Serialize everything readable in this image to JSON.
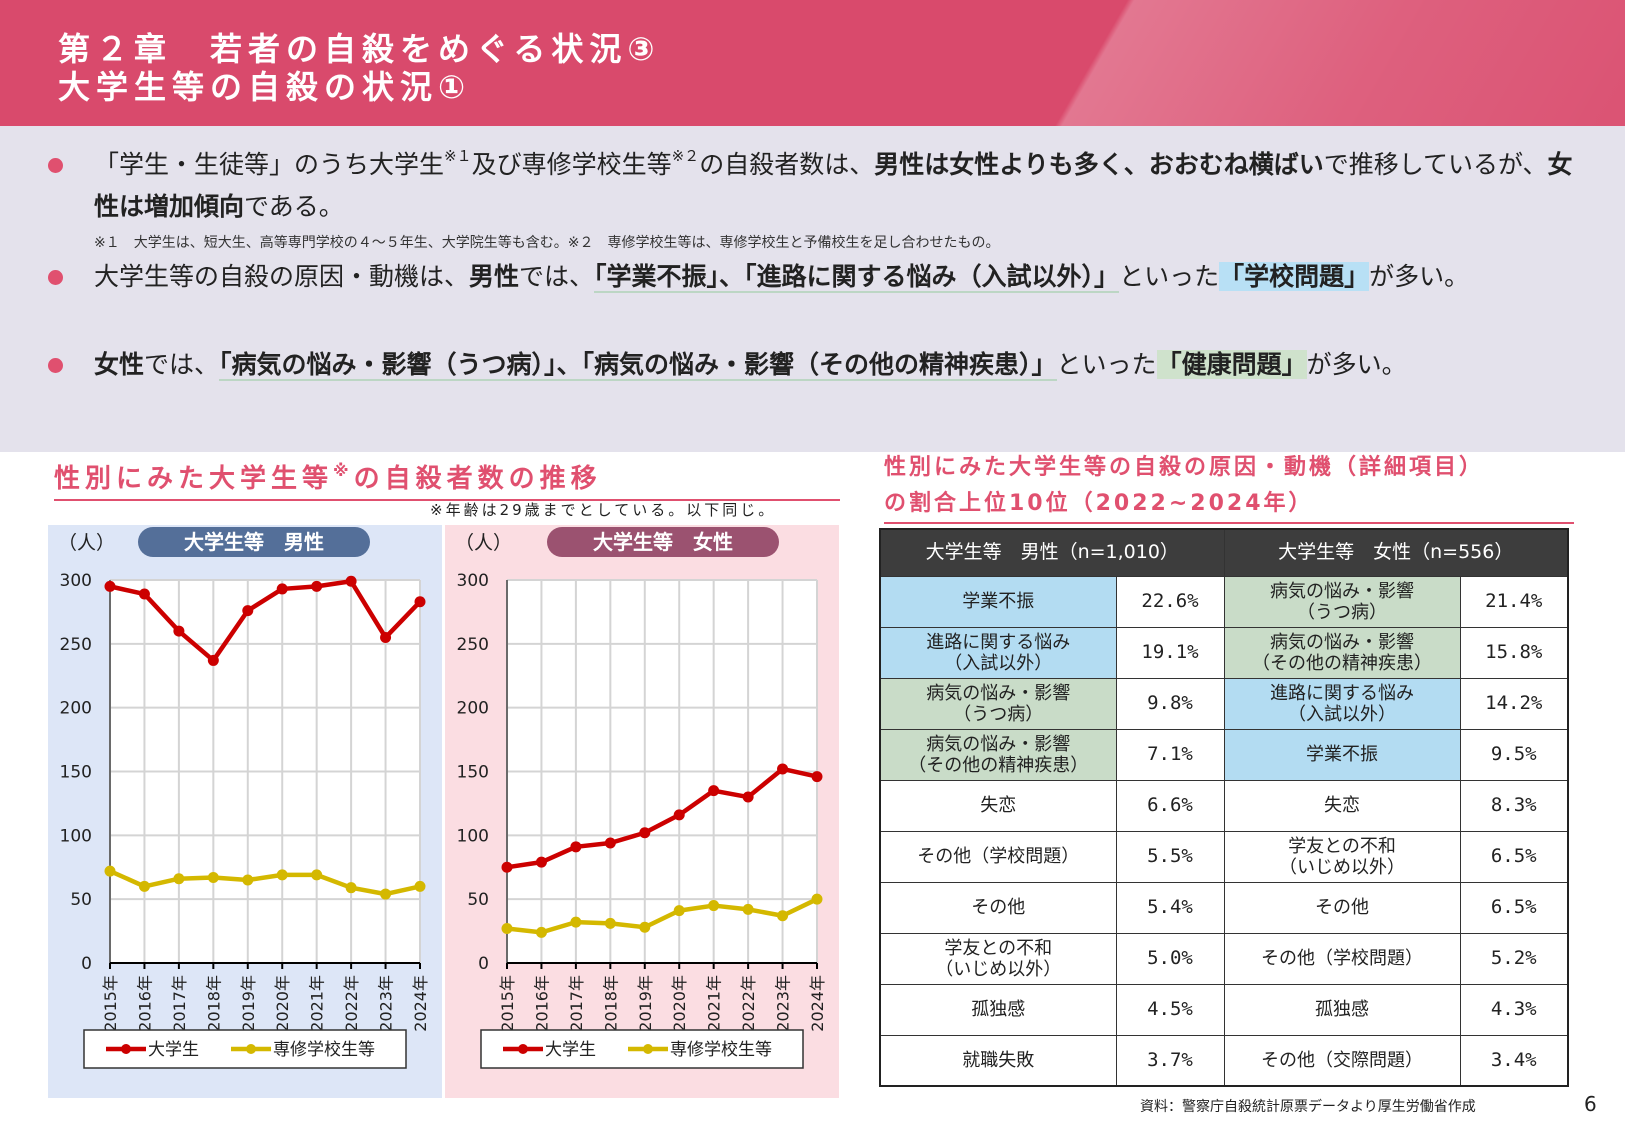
{
  "header": {
    "line1": "第２章　若者の自殺をめぐる状況③",
    "line2": "大学生等の自殺の状況①"
  },
  "bullets": [
    {
      "segments": [
        {
          "text": "「学生・生徒等」のうち大学生"
        },
        {
          "text": "※１",
          "sup": true
        },
        {
          "text": "及び専修学校生等"
        },
        {
          "text": "※２",
          "sup": true
        },
        {
          "text": "の自殺者数は、"
        },
        {
          "text": "男性は女性よりも多く、おおむね横ばい",
          "bold": true
        },
        {
          "text": "で推移しているが、"
        },
        {
          "text": "女性は増加傾向",
          "bold": true
        },
        {
          "text": "である。"
        }
      ]
    },
    {
      "segments": [
        {
          "text": "大学生等の自殺の原因・動機は、"
        },
        {
          "text": "男性",
          "bold": true
        },
        {
          "text": "では、"
        },
        {
          "text": "「学業不振」、「進路に関する悩み（入試以外）」",
          "bold": true,
          "ul": true
        },
        {
          "text": "といった"
        },
        {
          "text": "「学校問題」",
          "bold": true,
          "hl": "blue"
        },
        {
          "text": "が多い。"
        }
      ]
    },
    {
      "segments": [
        {
          "text": "女性",
          "bold": true
        },
        {
          "text": "では、"
        },
        {
          "text": "「病気の悩み・影響（うつ病）」、「病気の悩み・影響（その他の精神疾患）」",
          "bold": true,
          "ul": true
        },
        {
          "text": "といった"
        },
        {
          "text": "「健康問題」",
          "bold": true,
          "hl": "green"
        },
        {
          "text": "が多い。"
        }
      ]
    }
  ],
  "note": "※１　大学生は、短大生、高等専門学校の４～５年生、大学院生等も含む。※２　専修学校生等は、専修学校生と予備校生を足し合わせたもの。",
  "left_section": {
    "title": "性別にみた大学生等",
    "title_sup": "※",
    "title_rest": "の自殺者数の推移",
    "note": "※年齢は29歳までとしている。以下同じ。"
  },
  "right_section": {
    "title_line1": "性別にみた大学生等の自殺の原因・動機（詳細項目）",
    "title_line2": "の割合上位10位（2022~2024年）"
  },
  "chart_data": [
    {
      "type": "line",
      "title": "大学生等　男性",
      "ylabel": "（人）",
      "ylim": [
        0,
        300
      ],
      "yticks": [
        0,
        50,
        100,
        150,
        200,
        250,
        300
      ],
      "grid": true,
      "legend": "bottom",
      "categories": [
        "2015年",
        "2016年",
        "2017年",
        "2018年",
        "2019年",
        "2020年",
        "2021年",
        "2022年",
        "2023年",
        "2024年"
      ],
      "series": [
        {
          "name": "大学生",
          "color": "#cc0000",
          "values": [
            295,
            289,
            260,
            237,
            276,
            293,
            295,
            299,
            255,
            283
          ]
        },
        {
          "name": "専修学校生等",
          "color": "#d4b800",
          "values": [
            72,
            60,
            66,
            67,
            65,
            69,
            69,
            59,
            54,
            60
          ]
        }
      ]
    },
    {
      "type": "line",
      "title": "大学生等　女性",
      "ylabel": "（人）",
      "ylim": [
        0,
        300
      ],
      "yticks": [
        0,
        50,
        100,
        150,
        200,
        250,
        300
      ],
      "grid": true,
      "legend": "bottom",
      "categories": [
        "2015年",
        "2016年",
        "2017年",
        "2018年",
        "2019年",
        "2020年",
        "2021年",
        "2022年",
        "2023年",
        "2024年"
      ],
      "series": [
        {
          "name": "大学生",
          "color": "#cc0000",
          "values": [
            75,
            79,
            91,
            94,
            102,
            116,
            135,
            130,
            152,
            146
          ]
        },
        {
          "name": "専修学校生等",
          "color": "#d4b800",
          "values": [
            27,
            24,
            32,
            31,
            28,
            41,
            45,
            42,
            37,
            50
          ]
        }
      ]
    }
  ],
  "table": {
    "headers": [
      "大学生等　男性（n=1,010）",
      "大学生等　女性（n=556）"
    ],
    "rows": [
      {
        "m": "学業不振",
        "mv": "22.6%",
        "mc": "blue",
        "f": "病気の悩み・影響\n（うつ病）",
        "fv": "21.4%",
        "fc": "green"
      },
      {
        "m": "進路に関する悩み\n（入試以外）",
        "mv": "19.1%",
        "mc": "blue",
        "f": "病気の悩み・影響\n（その他の精神疾患）",
        "fv": "15.8%",
        "fc": "green"
      },
      {
        "m": "病気の悩み・影響\n（うつ病）",
        "mv": "9.8%",
        "mc": "green",
        "f": "進路に関する悩み\n（入試以外）",
        "fv": "14.2%",
        "fc": "blue"
      },
      {
        "m": "病気の悩み・影響\n（その他の精神疾患）",
        "mv": "7.1%",
        "mc": "green",
        "f": "学業不振",
        "fv": "9.5%",
        "fc": "blue"
      },
      {
        "m": "失恋",
        "mv": "6.6%",
        "mc": "",
        "f": "失恋",
        "fv": "8.3%",
        "fc": ""
      },
      {
        "m": "その他（学校問題）",
        "mv": "5.5%",
        "mc": "",
        "f": "学友との不和\n（いじめ以外）",
        "fv": "6.5%",
        "fc": ""
      },
      {
        "m": "その他",
        "mv": "5.4%",
        "mc": "",
        "f": "その他",
        "fv": "6.5%",
        "fc": ""
      },
      {
        "m": "学友との不和\n（いじめ以外）",
        "mv": "5.0%",
        "mc": "",
        "f": "その他（学校問題）",
        "fv": "5.2%",
        "fc": ""
      },
      {
        "m": "孤独感",
        "mv": "4.5%",
        "mc": "",
        "f": "孤独感",
        "fv": "4.3%",
        "fc": ""
      },
      {
        "m": "就職失敗",
        "mv": "3.7%",
        "mc": "",
        "f": "その他（交際問題）",
        "fv": "3.4%",
        "fc": ""
      }
    ]
  },
  "source": "資料：警察庁自殺統計原票データより厚生労働省作成",
  "page_number": "6",
  "colors": {
    "header": "#d94a6c",
    "accent": "#e0506f",
    "male_badge": "#546f99",
    "female_badge": "#9b5270",
    "highlight_blue": "#b3dcf2",
    "highlight_green": "#c9dcc8"
  }
}
